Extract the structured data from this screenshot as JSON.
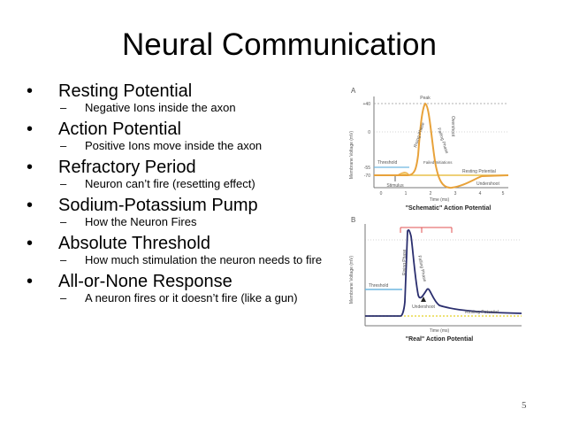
{
  "slide": {
    "title": "Neural Communication",
    "page_number": "5"
  },
  "bullets": [
    {
      "label": "Resting Potential",
      "sub": "Negative Ions inside the axon"
    },
    {
      "label": "Action Potential",
      "sub": "Positive Ions move inside the axon"
    },
    {
      "label": "Refractory Period",
      "sub": "Neuron can’t fire (resetting effect)"
    },
    {
      "label": "Sodium-Potassium Pump",
      "sub": "How the Neuron Fires"
    },
    {
      "label": "Absolute Threshold",
      "sub": "How much stimulation the neuron needs to fire"
    },
    {
      "label": "All-or-None Response",
      "sub": "A neuron fires or it doesn’t fire (like a gun)"
    }
  ],
  "figure_a": {
    "panel_label": "A",
    "caption": "\"Schematic\" Action Potential",
    "ylabel": "Membrane Voltage (mV)",
    "xlabel": "Time (ms)",
    "y_ticks": [
      "+40",
      "0",
      "-55",
      "-70"
    ],
    "x_ticks": [
      "0",
      "1",
      "2",
      "3",
      "4",
      "5"
    ],
    "annotations": {
      "peak": "Peak",
      "rising": "Rising Phase",
      "falling": "Falling Phase",
      "overshoot": "Overshoot",
      "threshold": "Threshold",
      "failed": "Failed Initiations",
      "resting": "Resting Potential",
      "undershoot": "Undershoot",
      "stimulus": "Stimulus"
    },
    "colors": {
      "trace": "#e8a23a",
      "threshold": "#6fb7e0",
      "resting": "#e8c04a"
    }
  },
  "figure_b": {
    "panel_label": "B",
    "caption": "\"Real\" Action Potential",
    "ylabel": "Membrane Voltage (mV)",
    "xlabel": "Time (ms)",
    "annotations": {
      "rising": "Rising Phase",
      "falling": "Falling Phase",
      "threshold": "Threshold",
      "undershoot": "Undershoot",
      "resting": "Resting Potential"
    },
    "colors": {
      "trace": "#2a2e6e",
      "threshold": "#6fb7e0",
      "resting": "#e8d84a",
      "marker": "#e05050"
    }
  }
}
